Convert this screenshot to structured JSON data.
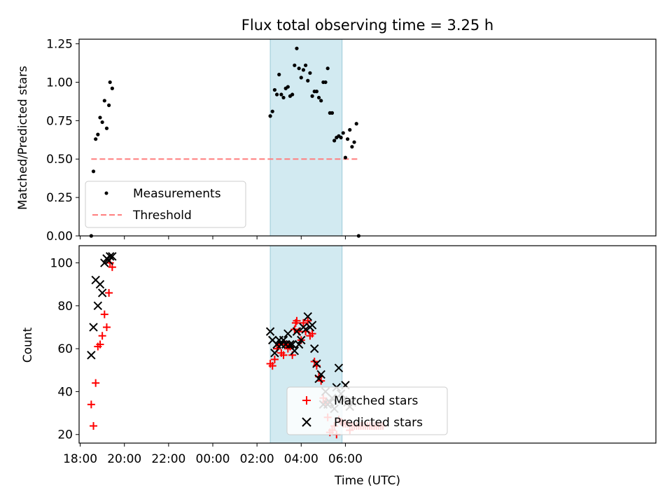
{
  "figure": {
    "title": "Flux total observing time = 3.25 h",
    "xlabel": "Time (UTC)",
    "xticks": [
      "18:00",
      "20:00",
      "22:00",
      "00:00",
      "02:00",
      "04:00",
      "06:00"
    ]
  },
  "chart_data": [
    {
      "type": "scatter",
      "ylabel": "Matched/Predicted stars",
      "ylim": [
        0,
        1.28
      ],
      "yticks": [
        "0.00",
        "0.25",
        "0.50",
        "0.75",
        "1.00",
        "1.25"
      ],
      "x_axis": "hours since 18:00 UTC",
      "xlim": [
        -0.05,
        26.05
      ],
      "shaded_span": {
        "x": [
          8.6,
          11.85
        ],
        "color": "#add8e6"
      },
      "legend": {
        "position": "lower-left"
      },
      "series": [
        {
          "name": "Measurements",
          "marker": "dot",
          "color": "#000000",
          "x": [
            0.5,
            0.6,
            0.7,
            0.8,
            0.9,
            1.0,
            1.1,
            1.2,
            1.3,
            1.35,
            1.45,
            8.6,
            8.7,
            8.8,
            8.9,
            9.0,
            9.1,
            9.2,
            9.3,
            9.4,
            9.5,
            9.6,
            9.7,
            9.8,
            9.9,
            10.0,
            10.1,
            10.2,
            10.3,
            10.4,
            10.5,
            10.6,
            10.7,
            10.8,
            10.9,
            11.0,
            11.1,
            11.2,
            11.3,
            11.4,
            11.5,
            11.6,
            11.7,
            11.8,
            11.9,
            12.0,
            12.1,
            12.2,
            12.3,
            12.4,
            12.5,
            12.6
          ],
          "y": [
            0.0,
            0.42,
            0.63,
            0.66,
            0.77,
            0.74,
            0.88,
            0.7,
            0.85,
            1.0,
            0.96,
            0.78,
            0.81,
            0.95,
            0.92,
            1.05,
            0.92,
            0.9,
            0.96,
            0.97,
            0.91,
            0.92,
            1.11,
            1.22,
            1.09,
            1.03,
            1.08,
            1.11,
            1.01,
            1.06,
            0.91,
            0.94,
            0.94,
            0.9,
            0.88,
            1.0,
            1.0,
            1.09,
            0.8,
            0.8,
            0.62,
            0.64,
            0.65,
            0.64,
            0.67,
            0.51,
            0.63,
            0.69,
            0.58,
            0.61,
            0.73,
            0.0
          ]
        },
        {
          "name": "Threshold",
          "marker": "dashed-line",
          "color": "#ff7f7f",
          "x": [
            0.5,
            12.6
          ],
          "y": [
            0.5,
            0.5
          ]
        }
      ]
    },
    {
      "type": "scatter",
      "ylabel": "Count",
      "ylim": [
        16,
        108
      ],
      "yticks": [
        "20",
        "40",
        "60",
        "80",
        "100"
      ],
      "x_axis": "hours since 18:00 UTC",
      "xlim": [
        -0.05,
        26.05
      ],
      "shaded_span": {
        "x": [
          8.6,
          11.85
        ],
        "color": "#add8e6"
      },
      "legend": {
        "position": "lower-center"
      },
      "series": [
        {
          "name": "Matched stars",
          "marker": "plus",
          "color": "#ff0000",
          "x": [
            0.5,
            0.6,
            0.7,
            0.8,
            0.9,
            1.0,
            1.1,
            1.2,
            1.3,
            1.35,
            1.45,
            8.6,
            8.7,
            8.8,
            8.9,
            9.0,
            9.1,
            9.2,
            9.3,
            9.4,
            9.5,
            9.6,
            9.7,
            9.75,
            9.8,
            9.9,
            10.0,
            10.1,
            10.2,
            10.3,
            10.4,
            10.5,
            10.6,
            10.7,
            10.8,
            10.9,
            11.0,
            11.1,
            11.2,
            11.3,
            11.4,
            11.5,
            11.6,
            11.7,
            11.8,
            11.9,
            12.0,
            12.1,
            12.2,
            12.3,
            12.4,
            12.5,
            12.6,
            12.7,
            12.8,
            12.9,
            13.0,
            13.1,
            13.2,
            13.3,
            13.4,
            13.5,
            13.6,
            13.7
          ],
          "y": [
            34,
            24,
            44,
            61,
            62,
            66,
            76,
            70,
            86,
            100,
            98,
            53,
            52,
            55,
            60,
            62,
            58,
            57,
            62,
            60,
            61,
            57,
            69,
            72,
            73,
            68,
            64,
            72,
            68,
            73,
            66,
            67,
            54,
            52,
            47,
            45,
            37,
            35,
            28,
            21,
            22,
            24,
            20,
            27,
            26,
            25,
            25,
            25,
            22,
            24,
            24,
            24,
            24,
            24,
            24,
            24,
            24,
            24,
            24,
            24,
            24,
            24,
            24,
            24
          ]
        },
        {
          "name": "Predicted stars",
          "marker": "x",
          "color": "#000000",
          "x": [
            0.5,
            0.6,
            0.7,
            0.8,
            0.9,
            1.0,
            1.1,
            1.2,
            1.3,
            1.35,
            1.45,
            8.6,
            8.7,
            8.8,
            8.9,
            9.0,
            9.1,
            9.2,
            9.3,
            9.4,
            9.5,
            9.6,
            9.7,
            9.8,
            9.9,
            10.0,
            10.1,
            10.2,
            10.3,
            10.4,
            10.5,
            10.6,
            10.7,
            10.8,
            10.9,
            11.0,
            11.1,
            11.2,
            11.3,
            11.4,
            11.5,
            11.6,
            11.7,
            11.8,
            11.9,
            12.0,
            12.1,
            12.2,
            12.3
          ],
          "y": [
            57,
            70,
            92,
            80,
            90,
            86,
            100,
            102,
            101,
            103,
            103,
            68,
            64,
            58,
            62,
            64,
            62,
            64,
            62,
            67,
            62,
            62,
            59,
            68,
            62,
            64,
            70,
            69,
            75,
            70,
            71,
            60,
            53,
            46,
            48,
            34,
            40,
            34,
            35,
            37,
            32,
            42,
            51,
            39,
            36,
            43,
            35,
            33,
            35
          ]
        }
      ]
    }
  ]
}
